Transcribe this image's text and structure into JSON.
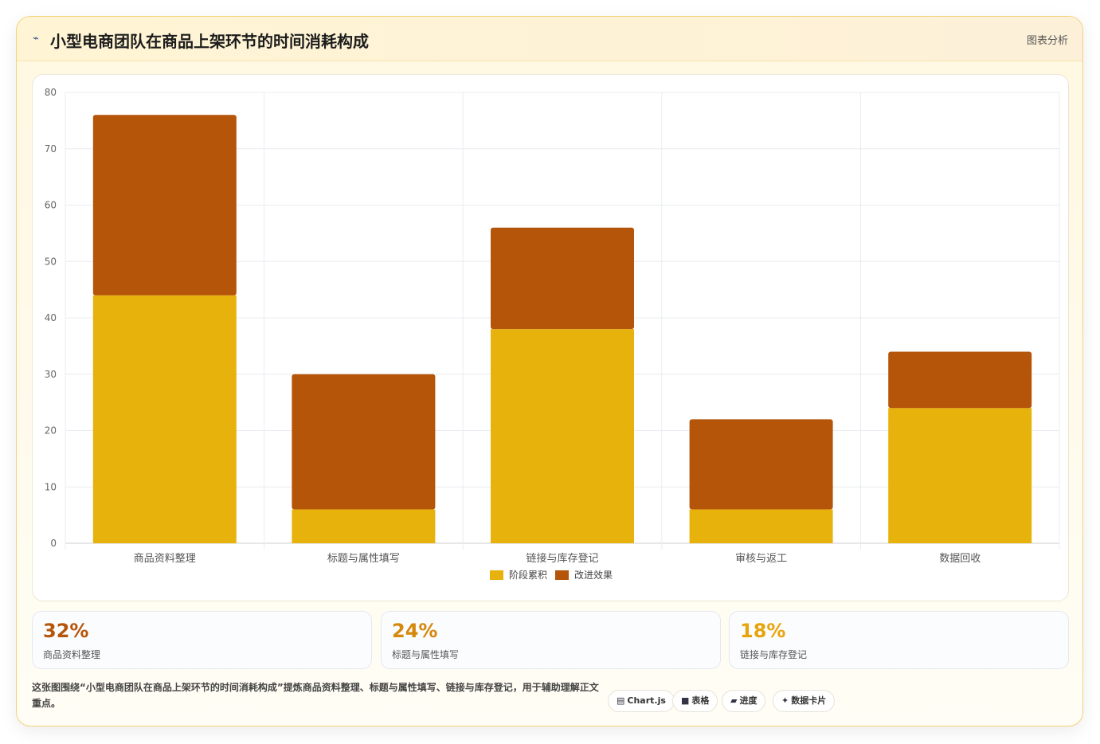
{
  "header": {
    "icon": "chart-line-icon",
    "title": "小型电商团队在商品上架环节的时间消耗构成",
    "tag": "图表分析"
  },
  "chart_data": {
    "type": "bar",
    "stacked": true,
    "categories": [
      "商品资料整理",
      "标题与属性填写",
      "链接与库存登记",
      "审核与返工",
      "数据回收"
    ],
    "series": [
      {
        "name": "阶段累积",
        "color": "#e8b20c",
        "values": [
          44,
          6,
          38,
          6,
          24
        ]
      },
      {
        "name": "改进效果",
        "color": "#b5550a",
        "values": [
          32,
          24,
          18,
          16,
          10
        ]
      }
    ],
    "ylim": [
      0,
      80
    ],
    "yticks": [
      0,
      10,
      20,
      30,
      40,
      50,
      60,
      70,
      80
    ],
    "grid": true,
    "legend": "bottom-center"
  },
  "stats": [
    {
      "value": "32%",
      "label": "商品资料整理",
      "color": "#b5550a"
    },
    {
      "value": "24%",
      "label": "标题与属性填写",
      "color": "#d4880c"
    },
    {
      "value": "18%",
      "label": "链接与库存登记",
      "color": "#e8a40c"
    }
  ],
  "note": "这张图围绕“小型电商团队在商品上架环节的时间消耗构成”提炼商品资料整理、标题与属性填写、链接与库存登记，用于辅助理解正文重点。",
  "chips": [
    {
      "icon": "chart-icon",
      "glyph": "▤",
      "label": "Chart.js"
    },
    {
      "icon": "table-icon",
      "glyph": "■",
      "label": "表格"
    },
    {
      "icon": "progress-icon",
      "glyph": "▰",
      "label": "进度"
    },
    {
      "icon": "sparkle-icon",
      "glyph": "✦",
      "label": "数据卡片"
    }
  ]
}
